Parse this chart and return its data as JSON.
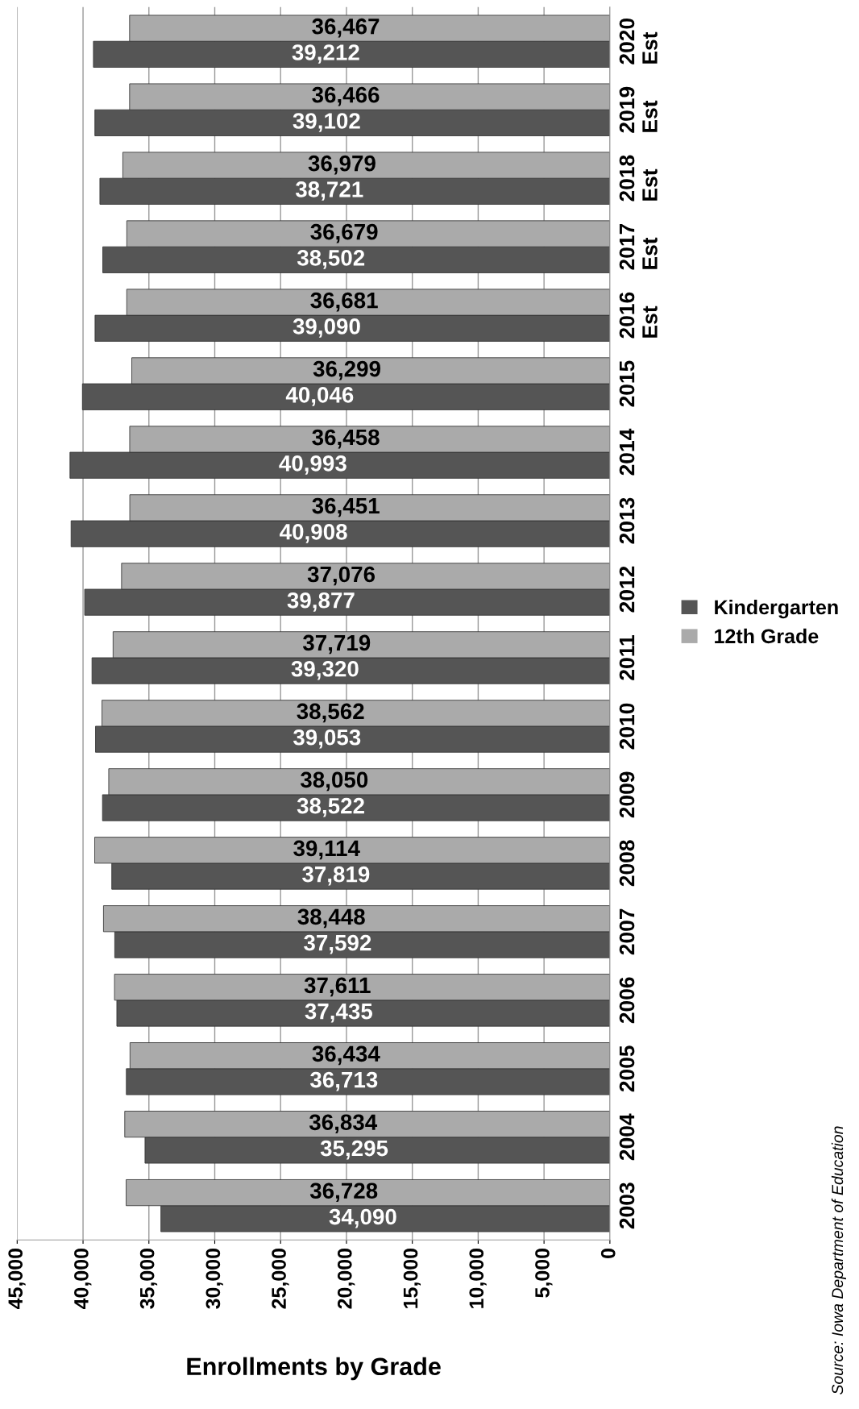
{
  "chart_data": {
    "type": "bar",
    "orientation": "horizontal",
    "title": "Enrollments by Grade",
    "categories": [
      "2020\nEst",
      "2019\nEst",
      "2018\nEst",
      "2017\nEst",
      "2016\nEst",
      "2015",
      "2014",
      "2013",
      "2012",
      "2011",
      "2010",
      "2009",
      "2008",
      "2007",
      "2006",
      "2005",
      "2004",
      "2003"
    ],
    "series": [
      {
        "name": "Kindergarten",
        "color": "#555555",
        "values": [
          39212,
          39102,
          38721,
          38502,
          39090,
          40046,
          40993,
          40908,
          39877,
          39320,
          39053,
          38522,
          37819,
          37592,
          37435,
          36713,
          35295,
          34090
        ],
        "value_labels": [
          "39,212",
          "39,102",
          "38,721",
          "38,502",
          "39,090",
          "40,046",
          "40,993",
          "40,908",
          "39,877",
          "39,320",
          "39,053",
          "38,522",
          "37,819",
          "37,592",
          "37,435",
          "36,713",
          "35,295",
          "34,090"
        ]
      },
      {
        "name": "12th Grade",
        "color": "#aaaaaa",
        "values": [
          36467,
          36466,
          36979,
          36679,
          36681,
          36299,
          36458,
          36451,
          37076,
          37719,
          38562,
          38050,
          39114,
          38448,
          37611,
          36434,
          36834,
          36728
        ],
        "value_labels": [
          "36,467",
          "36,466",
          "36,979",
          "36,679",
          "36,681",
          "36,299",
          "36,458",
          "36,451",
          "37,076",
          "37,719",
          "38,562",
          "38,050",
          "39,114",
          "38,448",
          "37,611",
          "36,434",
          "36,834",
          "36,728"
        ]
      }
    ],
    "xlim": [
      45000,
      0
    ],
    "xticks": [
      {
        "value": 45000,
        "label": "45,000"
      },
      {
        "value": 40000,
        "label": "40,000"
      },
      {
        "value": 35000,
        "label": "35,000"
      },
      {
        "value": 30000,
        "label": "30,000"
      },
      {
        "value": 25000,
        "label": "25,000"
      },
      {
        "value": 20000,
        "label": "20,000"
      },
      {
        "value": 15000,
        "label": "15,000"
      },
      {
        "value": 10000,
        "label": "10,000"
      },
      {
        "value": 5000,
        "label": "5,000"
      },
      0
    ],
    "grid": "x",
    "legend": "right",
    "annotations": [
      "Source: Iowa Department of Education"
    ]
  }
}
